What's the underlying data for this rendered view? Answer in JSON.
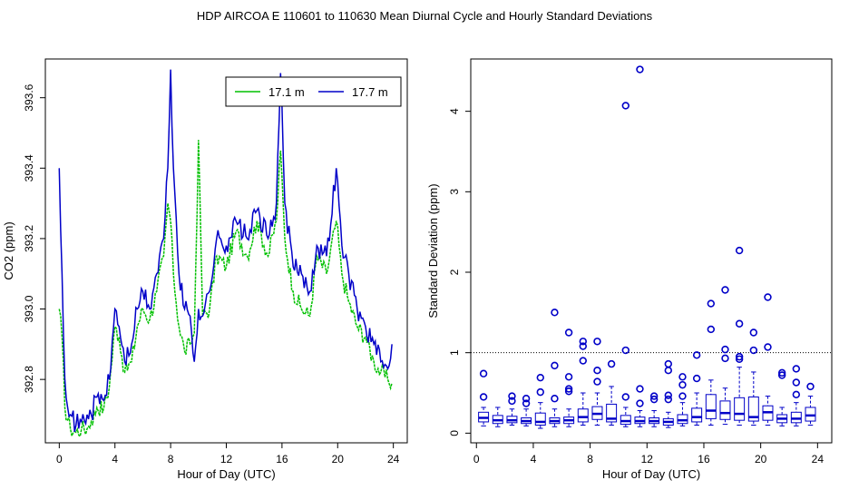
{
  "page_title": "HDP   AIRCOA E   110601 to 110630   Mean Diurnal Cycle and Hourly Standard Deviations",
  "colors": {
    "series_17_1": "#00c000",
    "series_17_7": "#0000c8",
    "box": "#0000c8",
    "axis": "#000000"
  },
  "chart_data": [
    {
      "type": "line",
      "title": "",
      "xlabel": "Hour of Day (UTC)",
      "ylabel": "CO2 (ppm)",
      "xlim": [
        -1,
        25
      ],
      "ylim": [
        392.62,
        393.71
      ],
      "xticks": [
        0,
        4,
        8,
        12,
        16,
        20,
        24
      ],
      "xtick_labels": [
        "0",
        "4",
        "8",
        "12",
        "16",
        "20",
        "24"
      ],
      "yticks": [
        392.8,
        393.0,
        393.2,
        393.4,
        393.6
      ],
      "ytick_labels": [
        "392.8",
        "393.0",
        "393.2",
        "393.4",
        "393.6"
      ],
      "legend": {
        "placement": "top-right",
        "entries": [
          "17.1 m",
          "17.7 m"
        ]
      },
      "anchors": {
        "17.7 m": [
          [
            0.0,
            393.4
          ],
          [
            0.2,
            393.1
          ],
          [
            0.4,
            392.8
          ],
          [
            0.8,
            392.7
          ],
          [
            1.2,
            392.67
          ],
          [
            1.6,
            392.68
          ],
          [
            2.0,
            392.7
          ],
          [
            2.3,
            392.7
          ],
          [
            2.7,
            392.75
          ],
          [
            3.2,
            392.74
          ],
          [
            3.6,
            392.8
          ],
          [
            4.0,
            393.0
          ],
          [
            4.3,
            392.95
          ],
          [
            4.7,
            392.85
          ],
          [
            5.2,
            392.9
          ],
          [
            5.6,
            393.0
          ],
          [
            6.0,
            393.05
          ],
          [
            6.5,
            393.0
          ],
          [
            7.0,
            393.1
          ],
          [
            7.5,
            393.2
          ],
          [
            7.8,
            393.4
          ],
          [
            8.0,
            393.68
          ],
          [
            8.2,
            393.4
          ],
          [
            8.6,
            393.1
          ],
          [
            9.0,
            393.0
          ],
          [
            9.4,
            392.98
          ],
          [
            9.7,
            392.85
          ],
          [
            10.0,
            393.0
          ],
          [
            10.3,
            392.98
          ],
          [
            10.8,
            393.05
          ],
          [
            11.3,
            393.2
          ],
          [
            12.0,
            393.18
          ],
          [
            12.7,
            393.25
          ],
          [
            13.5,
            393.2
          ],
          [
            14.2,
            393.28
          ],
          [
            15.0,
            393.2
          ],
          [
            15.6,
            393.3
          ],
          [
            15.9,
            393.67
          ],
          [
            16.2,
            393.3
          ],
          [
            16.8,
            393.12
          ],
          [
            17.4,
            393.1
          ],
          [
            18.0,
            393.05
          ],
          [
            18.5,
            393.18
          ],
          [
            19.2,
            393.15
          ],
          [
            19.9,
            393.4
          ],
          [
            20.3,
            393.18
          ],
          [
            20.8,
            393.1
          ],
          [
            21.4,
            393.0
          ],
          [
            22.0,
            392.95
          ],
          [
            22.6,
            392.9
          ],
          [
            23.1,
            392.85
          ],
          [
            23.6,
            392.83
          ],
          [
            23.9,
            392.9
          ]
        ],
        "17.1 m": [
          [
            0.0,
            393.0
          ],
          [
            0.2,
            392.92
          ],
          [
            0.4,
            392.72
          ],
          [
            0.8,
            392.66
          ],
          [
            1.2,
            392.65
          ],
          [
            1.6,
            392.66
          ],
          [
            2.0,
            392.66
          ],
          [
            2.3,
            392.68
          ],
          [
            2.7,
            392.72
          ],
          [
            3.2,
            392.72
          ],
          [
            3.6,
            392.78
          ],
          [
            4.0,
            392.95
          ],
          [
            4.3,
            392.92
          ],
          [
            4.7,
            392.82
          ],
          [
            5.2,
            392.85
          ],
          [
            5.6,
            392.95
          ],
          [
            6.0,
            393.0
          ],
          [
            6.5,
            392.97
          ],
          [
            7.0,
            393.05
          ],
          [
            7.5,
            393.15
          ],
          [
            7.8,
            393.3
          ],
          [
            8.0,
            393.25
          ],
          [
            8.2,
            393.1
          ],
          [
            8.6,
            392.95
          ],
          [
            9.0,
            392.88
          ],
          [
            9.4,
            392.9
          ],
          [
            9.7,
            392.93
          ],
          [
            10.0,
            393.48
          ],
          [
            10.3,
            392.98
          ],
          [
            10.8,
            393.0
          ],
          [
            11.3,
            393.15
          ],
          [
            12.0,
            393.12
          ],
          [
            12.7,
            393.22
          ],
          [
            13.5,
            393.15
          ],
          [
            14.2,
            393.25
          ],
          [
            15.0,
            393.15
          ],
          [
            15.6,
            393.25
          ],
          [
            15.9,
            393.45
          ],
          [
            16.2,
            393.2
          ],
          [
            16.8,
            393.05
          ],
          [
            17.4,
            393.0
          ],
          [
            18.0,
            392.98
          ],
          [
            18.5,
            393.15
          ],
          [
            19.2,
            393.1
          ],
          [
            19.9,
            393.25
          ],
          [
            20.3,
            393.1
          ],
          [
            20.8,
            393.02
          ],
          [
            21.4,
            392.95
          ],
          [
            22.0,
            392.92
          ],
          [
            22.6,
            392.85
          ],
          [
            23.1,
            392.82
          ],
          [
            23.6,
            392.8
          ],
          [
            23.9,
            392.79
          ]
        ]
      }
    },
    {
      "type": "box",
      "title": "",
      "xlabel": "Hour of Day (UTC)",
      "ylabel": "Standard Deviation (ppm)",
      "xlim": [
        -0.4,
        25.0
      ],
      "ylim": [
        -0.12,
        4.65
      ],
      "xticks": [
        0,
        4,
        8,
        12,
        16,
        20,
        24
      ],
      "xtick_labels": [
        "0",
        "4",
        "8",
        "12",
        "16",
        "20",
        "24"
      ],
      "yticks": [
        0,
        1,
        2,
        3,
        4
      ],
      "ytick_labels": [
        "0",
        "1",
        "2",
        "3",
        "4"
      ],
      "reference_line": 1.0,
      "boxes": [
        {
          "x": 0.5,
          "min": 0.09,
          "q1": 0.14,
          "med": 0.19,
          "q3": 0.26,
          "max": 0.32
        },
        {
          "x": 1.5,
          "min": 0.08,
          "q1": 0.12,
          "med": 0.16,
          "q3": 0.22,
          "max": 0.32
        },
        {
          "x": 2.5,
          "min": 0.1,
          "q1": 0.13,
          "med": 0.16,
          "q3": 0.21,
          "max": 0.3
        },
        {
          "x": 3.5,
          "min": 0.09,
          "q1": 0.12,
          "med": 0.15,
          "q3": 0.19,
          "max": 0.3
        },
        {
          "x": 4.5,
          "min": 0.06,
          "q1": 0.1,
          "med": 0.14,
          "q3": 0.25,
          "max": 0.38
        },
        {
          "x": 5.5,
          "min": 0.08,
          "q1": 0.12,
          "med": 0.15,
          "q3": 0.19,
          "max": 0.3
        },
        {
          "x": 6.5,
          "min": 0.08,
          "q1": 0.12,
          "med": 0.16,
          "q3": 0.2,
          "max": 0.3
        },
        {
          "x": 7.5,
          "min": 0.1,
          "q1": 0.14,
          "med": 0.2,
          "q3": 0.3,
          "max": 0.5
        },
        {
          "x": 8.5,
          "min": 0.1,
          "q1": 0.17,
          "med": 0.24,
          "q3": 0.33,
          "max": 0.5
        },
        {
          "x": 9.5,
          "min": 0.1,
          "q1": 0.14,
          "med": 0.18,
          "q3": 0.36,
          "max": 0.58
        },
        {
          "x": 10.5,
          "min": 0.08,
          "q1": 0.11,
          "med": 0.15,
          "q3": 0.22,
          "max": 0.32
        },
        {
          "x": 11.5,
          "min": 0.08,
          "q1": 0.12,
          "med": 0.15,
          "q3": 0.2,
          "max": 0.28
        },
        {
          "x": 12.5,
          "min": 0.08,
          "q1": 0.12,
          "med": 0.15,
          "q3": 0.19,
          "max": 0.28
        },
        {
          "x": 13.5,
          "min": 0.07,
          "q1": 0.1,
          "med": 0.14,
          "q3": 0.18,
          "max": 0.26
        },
        {
          "x": 14.5,
          "min": 0.09,
          "q1": 0.12,
          "med": 0.16,
          "q3": 0.23,
          "max": 0.38
        },
        {
          "x": 15.5,
          "min": 0.1,
          "q1": 0.14,
          "med": 0.2,
          "q3": 0.31,
          "max": 0.5
        },
        {
          "x": 16.5,
          "min": 0.1,
          "q1": 0.18,
          "med": 0.28,
          "q3": 0.48,
          "max": 0.66
        },
        {
          "x": 17.5,
          "min": 0.11,
          "q1": 0.17,
          "med": 0.25,
          "q3": 0.4,
          "max": 0.56
        },
        {
          "x": 18.5,
          "min": 0.1,
          "q1": 0.16,
          "med": 0.24,
          "q3": 0.44,
          "max": 0.82
        },
        {
          "x": 19.5,
          "min": 0.1,
          "q1": 0.15,
          "med": 0.2,
          "q3": 0.45,
          "max": 0.76
        },
        {
          "x": 20.5,
          "min": 0.1,
          "q1": 0.16,
          "med": 0.26,
          "q3": 0.34,
          "max": 0.46
        },
        {
          "x": 21.5,
          "min": 0.09,
          "q1": 0.13,
          "med": 0.18,
          "q3": 0.23,
          "max": 0.32
        },
        {
          "x": 22.5,
          "min": 0.09,
          "q1": 0.13,
          "med": 0.18,
          "q3": 0.26,
          "max": 0.38
        },
        {
          "x": 23.5,
          "min": 0.1,
          "q1": 0.15,
          "med": 0.22,
          "q3": 0.32,
          "max": 0.46
        }
      ],
      "outliers": [
        {
          "x": 0.5,
          "y": 0.74
        },
        {
          "x": 0.5,
          "y": 0.45
        },
        {
          "x": 2.5,
          "y": 0.46
        },
        {
          "x": 2.5,
          "y": 0.4
        },
        {
          "x": 3.5,
          "y": 0.43
        },
        {
          "x": 3.5,
          "y": 0.37
        },
        {
          "x": 4.5,
          "y": 0.69
        },
        {
          "x": 4.5,
          "y": 0.51
        },
        {
          "x": 5.5,
          "y": 1.5
        },
        {
          "x": 5.5,
          "y": 0.84
        },
        {
          "x": 5.5,
          "y": 0.43
        },
        {
          "x": 6.5,
          "y": 1.25
        },
        {
          "x": 6.5,
          "y": 0.7
        },
        {
          "x": 6.5,
          "y": 0.55
        },
        {
          "x": 6.5,
          "y": 0.52
        },
        {
          "x": 7.5,
          "y": 1.14
        },
        {
          "x": 7.5,
          "y": 1.08
        },
        {
          "x": 7.5,
          "y": 0.9
        },
        {
          "x": 8.5,
          "y": 1.14
        },
        {
          "x": 8.5,
          "y": 0.78
        },
        {
          "x": 8.5,
          "y": 0.64
        },
        {
          "x": 9.5,
          "y": 0.86
        },
        {
          "x": 10.5,
          "y": 4.07
        },
        {
          "x": 10.5,
          "y": 1.03
        },
        {
          "x": 10.5,
          "y": 0.45
        },
        {
          "x": 11.5,
          "y": 4.52
        },
        {
          "x": 11.5,
          "y": 0.55
        },
        {
          "x": 11.5,
          "y": 0.37
        },
        {
          "x": 12.5,
          "y": 0.46
        },
        {
          "x": 12.5,
          "y": 0.42
        },
        {
          "x": 13.5,
          "y": 0.86
        },
        {
          "x": 13.5,
          "y": 0.78
        },
        {
          "x": 13.5,
          "y": 0.47
        },
        {
          "x": 13.5,
          "y": 0.42
        },
        {
          "x": 14.5,
          "y": 0.7
        },
        {
          "x": 14.5,
          "y": 0.6
        },
        {
          "x": 14.5,
          "y": 0.46
        },
        {
          "x": 15.5,
          "y": 0.97
        },
        {
          "x": 15.5,
          "y": 0.68
        },
        {
          "x": 16.5,
          "y": 1.61
        },
        {
          "x": 16.5,
          "y": 1.29
        },
        {
          "x": 17.5,
          "y": 1.78
        },
        {
          "x": 17.5,
          "y": 1.04
        },
        {
          "x": 17.5,
          "y": 0.93
        },
        {
          "x": 18.5,
          "y": 2.27
        },
        {
          "x": 18.5,
          "y": 1.36
        },
        {
          "x": 18.5,
          "y": 0.95
        },
        {
          "x": 18.5,
          "y": 0.92
        },
        {
          "x": 19.5,
          "y": 1.25
        },
        {
          "x": 19.5,
          "y": 1.03
        },
        {
          "x": 20.5,
          "y": 1.69
        },
        {
          "x": 20.5,
          "y": 1.07
        },
        {
          "x": 21.5,
          "y": 0.75
        },
        {
          "x": 21.5,
          "y": 0.72
        },
        {
          "x": 22.5,
          "y": 0.8
        },
        {
          "x": 22.5,
          "y": 0.63
        },
        {
          "x": 22.5,
          "y": 0.48
        },
        {
          "x": 23.5,
          "y": 0.58
        }
      ]
    }
  ]
}
